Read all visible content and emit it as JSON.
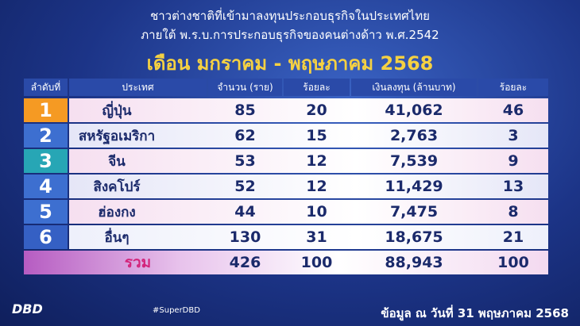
{
  "header": {
    "lines": [
      "ชาวต่างชาติที่เข้ามาลงทุนประกอบธุรกิจในประเทศไทย",
      "ภายใต้ พ.ร.บ.การประกอบธุรกิจของคนต่างด้าว พ.ศ.2542"
    ],
    "subtitle": "เดือน มกราคม - พฤษภาคม 2568"
  },
  "table": {
    "columns": [
      "ลำดับที่",
      "ประเทศ",
      "จำนวน (ราย)",
      "ร้อยละ",
      "เงินลงทุน (ล้านบาท)",
      "ร้อยละ"
    ],
    "rows": [
      [
        "1",
        "ญี่ปุ่น",
        "85",
        "20",
        "41,062",
        "46"
      ],
      [
        "2",
        "สหรัฐอเมริกา",
        "62",
        "15",
        "2,763",
        "3"
      ],
      [
        "3",
        "จีน",
        "53",
        "12",
        "7,539",
        "9"
      ],
      [
        "4",
        "สิงคโปร์",
        "52",
        "12",
        "11,429",
        "13"
      ],
      [
        "5",
        "ฮ่องกง",
        "44",
        "10",
        "7,475",
        "8"
      ],
      [
        "6",
        "อื่นๆ",
        "130",
        "31",
        "18,675",
        "21"
      ]
    ],
    "total": [
      "รวม",
      "426",
      "100",
      "88,943",
      "100"
    ]
  },
  "footer": {
    "date_note": "ข้อมูล ณ วันที่ 31 พฤษภาคม 2568",
    "hashtag": "#SuperDBD",
    "logo": "DBD"
  }
}
